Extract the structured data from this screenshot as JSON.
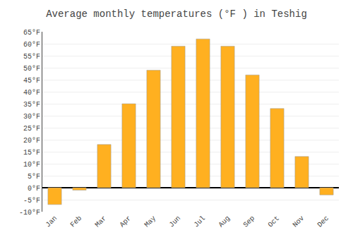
{
  "chart_data": {
    "type": "bar",
    "title": "Average monthly temperatures (°F ) in Teshig",
    "categories": [
      "Jan",
      "Feb",
      "Mar",
      "Apr",
      "May",
      "Jun",
      "Jul",
      "Aug",
      "Sep",
      "Oct",
      "Nov",
      "Dec"
    ],
    "values": [
      -7,
      -1,
      18,
      35,
      49,
      59,
      62,
      59,
      47,
      33,
      13,
      -3
    ],
    "color": "#FFB020",
    "ylim": [
      -10,
      65
    ],
    "yticks": [
      {
        "value": -10,
        "label": "-10°F"
      },
      {
        "value": -5,
        "label": "-5°F"
      },
      {
        "value": 0,
        "label": "0°F"
      },
      {
        "value": 5,
        "label": "5°F"
      },
      {
        "value": 10,
        "label": "10°F"
      },
      {
        "value": 15,
        "label": "15°F"
      },
      {
        "value": 20,
        "label": "20°F"
      },
      {
        "value": 25,
        "label": "25°F"
      },
      {
        "value": 30,
        "label": "30°F"
      },
      {
        "value": 35,
        "label": "35°F"
      },
      {
        "value": 40,
        "label": "40°F"
      },
      {
        "value": 45,
        "label": "45°F"
      },
      {
        "value": 50,
        "label": "50°F"
      },
      {
        "value": 55,
        "label": "55°F"
      },
      {
        "value": 60,
        "label": "60°F"
      },
      {
        "value": 65,
        "label": "65°F"
      }
    ],
    "grid": true
  }
}
